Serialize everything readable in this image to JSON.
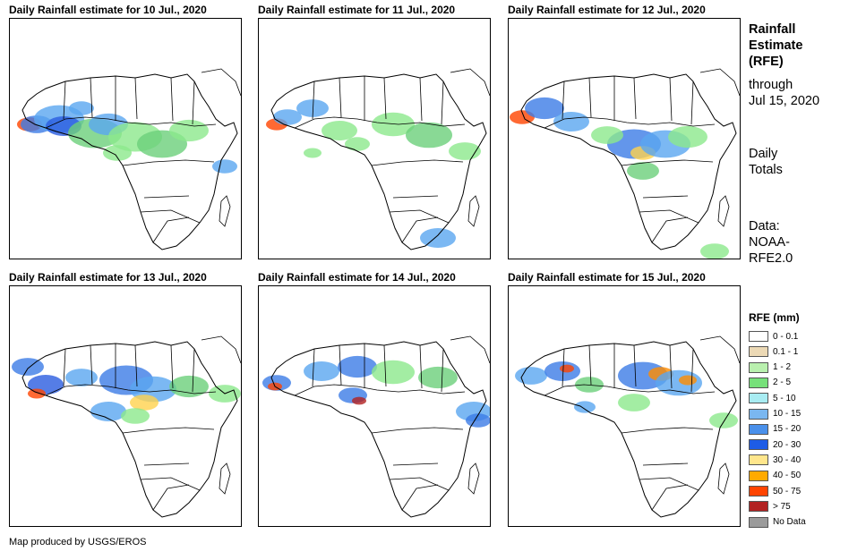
{
  "panels": [
    {
      "title": "Daily Rainfall estimate for 10 Jul., 2020",
      "rain": [
        [
          22,
          118,
          14,
          "#ff4400"
        ],
        [
          30,
          118,
          18,
          "#3c7ce6"
        ],
        [
          55,
          112,
          28,
          "#5aa6f0"
        ],
        [
          60,
          120,
          20,
          "#2a5de0"
        ],
        [
          95,
          128,
          30,
          "#6bd07a"
        ],
        [
          110,
          118,
          22,
          "#5aa6f0"
        ],
        [
          140,
          132,
          30,
          "#8ce88c"
        ],
        [
          170,
          140,
          28,
          "#6bd07a"
        ],
        [
          200,
          125,
          22,
          "#8ce88c"
        ],
        [
          240,
          165,
          14,
          "#5aa6f0"
        ],
        [
          120,
          150,
          16,
          "#8ce88c"
        ],
        [
          80,
          100,
          14,
          "#5aa6f0"
        ]
      ]
    },
    {
      "title": "Daily Rainfall estimate for 11 Jul., 2020",
      "rain": [
        [
          20,
          118,
          12,
          "#ff4400"
        ],
        [
          32,
          110,
          16,
          "#5aa6f0"
        ],
        [
          60,
          100,
          18,
          "#5aa6f0"
        ],
        [
          90,
          125,
          20,
          "#8ce88c"
        ],
        [
          150,
          118,
          24,
          "#8ce88c"
        ],
        [
          190,
          130,
          26,
          "#6bd07a"
        ],
        [
          230,
          148,
          18,
          "#8ce88c"
        ],
        [
          200,
          245,
          20,
          "#5aa6f0"
        ],
        [
          110,
          140,
          14,
          "#8ce88c"
        ],
        [
          60,
          150,
          10,
          "#8ce88c"
        ]
      ]
    },
    {
      "title": "Daily Rainfall estimate for 12 Jul., 2020",
      "rain": [
        [
          15,
          110,
          14,
          "#ff4400"
        ],
        [
          40,
          100,
          22,
          "#3c7ce6"
        ],
        [
          70,
          115,
          20,
          "#5aa6f0"
        ],
        [
          140,
          140,
          30,
          "#3c7ce6"
        ],
        [
          150,
          150,
          14,
          "#ffd24d"
        ],
        [
          175,
          140,
          28,
          "#5aa6f0"
        ],
        [
          200,
          132,
          22,
          "#8ce88c"
        ],
        [
          150,
          170,
          18,
          "#6bd07a"
        ],
        [
          230,
          260,
          16,
          "#8ce88c"
        ],
        [
          110,
          130,
          18,
          "#8ce88c"
        ]
      ]
    },
    {
      "title": "Daily Rainfall estimate for 13 Jul., 2020",
      "rain": [
        [
          20,
          90,
          18,
          "#3c7ce6"
        ],
        [
          40,
          110,
          20,
          "#2a5de0"
        ],
        [
          30,
          120,
          10,
          "#ff4400"
        ],
        [
          80,
          102,
          18,
          "#5aa6f0"
        ],
        [
          130,
          105,
          30,
          "#3c7ce6"
        ],
        [
          160,
          115,
          26,
          "#5aa6f0"
        ],
        [
          150,
          130,
          16,
          "#ffd24d"
        ],
        [
          200,
          112,
          22,
          "#6bd07a"
        ],
        [
          240,
          120,
          18,
          "#8ce88c"
        ],
        [
          110,
          140,
          20,
          "#5aa6f0"
        ],
        [
          140,
          145,
          16,
          "#8ce88c"
        ]
      ]
    },
    {
      "title": "Daily Rainfall estimate for 14 Jul., 2020",
      "rain": [
        [
          20,
          108,
          16,
          "#3c7ce6"
        ],
        [
          18,
          112,
          8,
          "#ff4400"
        ],
        [
          70,
          95,
          20,
          "#5aa6f0"
        ],
        [
          110,
          90,
          22,
          "#3c7ce6"
        ],
        [
          150,
          96,
          24,
          "#8ce88c"
        ],
        [
          200,
          102,
          22,
          "#6bd07a"
        ],
        [
          105,
          122,
          16,
          "#3c7ce6"
        ],
        [
          112,
          128,
          8,
          "#b22222"
        ],
        [
          240,
          140,
          20,
          "#5aa6f0"
        ],
        [
          245,
          150,
          14,
          "#3c7ce6"
        ]
      ]
    },
    {
      "title": "Daily Rainfall estimate for 15 Jul., 2020",
      "rain": [
        [
          25,
          100,
          18,
          "#5aa6f0"
        ],
        [
          60,
          95,
          20,
          "#3c7ce6"
        ],
        [
          65,
          92,
          8,
          "#ff4400"
        ],
        [
          90,
          110,
          16,
          "#6bd07a"
        ],
        [
          150,
          100,
          28,
          "#3c7ce6"
        ],
        [
          170,
          98,
          14,
          "#ff8c00"
        ],
        [
          190,
          108,
          26,
          "#5aa6f0"
        ],
        [
          200,
          105,
          10,
          "#ff8c00"
        ],
        [
          140,
          130,
          18,
          "#8ce88c"
        ],
        [
          240,
          150,
          16,
          "#8ce88c"
        ],
        [
          85,
          135,
          12,
          "#5aa6f0"
        ]
      ]
    }
  ],
  "side": {
    "heading": [
      "Rainfall",
      "Estimate",
      "(RFE)"
    ],
    "through": [
      "through",
      "Jul 15, 2020"
    ],
    "totals": [
      "Daily",
      "Totals"
    ],
    "source": [
      "Data:",
      "NOAA-",
      "RFE2.0"
    ]
  },
  "legend": {
    "title": "RFE (mm)",
    "items": [
      {
        "label": "0 - 0.1",
        "color": "#ffffff"
      },
      {
        "label": "0.1 - 1",
        "color": "#ecd9b5"
      },
      {
        "label": "1 - 2",
        "color": "#b9f0ae"
      },
      {
        "label": "2 - 5",
        "color": "#76e07a"
      },
      {
        "label": "5 - 10",
        "color": "#a8ecf2"
      },
      {
        "label": "10 - 15",
        "color": "#7ab7f0"
      },
      {
        "label": "15 - 20",
        "color": "#4a90ea"
      },
      {
        "label": "20 - 30",
        "color": "#1e5ce6"
      },
      {
        "label": "30 - 40",
        "color": "#ffe68c"
      },
      {
        "label": "40 - 50",
        "color": "#ffaa00"
      },
      {
        "label": "50 - 75",
        "color": "#ff4400"
      },
      {
        "label": "> 75",
        "color": "#b22222"
      },
      {
        "label": "No Data",
        "color": "#9b9b9b"
      }
    ]
  },
  "credit": "Map produced by USGS/EROS"
}
